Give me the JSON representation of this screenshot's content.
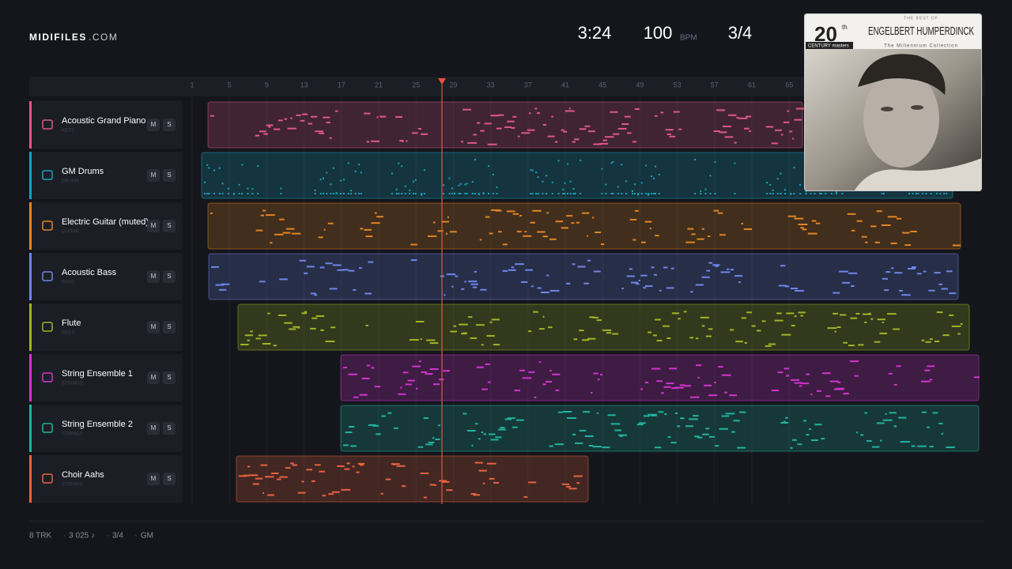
{
  "header": {
    "brand": "MIDIFILES",
    "domain": ".COM",
    "time": "3:24",
    "tempo": "100",
    "tempo_unit": "BPM",
    "meter": "3/4"
  },
  "ruler": [
    1,
    5,
    9,
    13,
    17,
    21,
    25,
    29,
    33,
    37,
    41,
    45,
    49,
    53,
    57,
    61,
    65
  ],
  "tracks": [
    {
      "name": "Acoustic Grand Piano",
      "group": "KEYS",
      "mute": "M",
      "solo": "S",
      "color": "#e0588a"
    },
    {
      "name": "GM Drums",
      "group": "DRUMS",
      "mute": "M",
      "solo": "S",
      "color": "#19a3bd"
    },
    {
      "name": "Electric Guitar (muted)",
      "group": "GUITAR",
      "mute": "M",
      "solo": "S",
      "color": "#e38524"
    },
    {
      "name": "Acoustic Bass",
      "group": "BASS",
      "mute": "M",
      "solo": "S",
      "color": "#6f86e8"
    },
    {
      "name": "Flute",
      "group": "REED",
      "mute": "M",
      "solo": "S",
      "color": "#a3b423"
    },
    {
      "name": "String Ensemble 1",
      "group": "STRINGS",
      "mute": "M",
      "solo": "S",
      "color": "#d533d2"
    },
    {
      "name": "String Ensemble 2",
      "group": "STRINGS",
      "mute": "M",
      "solo": "S",
      "color": "#22b3a1"
    },
    {
      "name": "Choir Aahs",
      "group": "STRINGS",
      "mute": "M",
      "solo": "S",
      "color": "#e8633f"
    }
  ],
  "album": {
    "series_top": "THE BEST OF",
    "artist": "ENGELBERT HUMPERDINCK",
    "badge": "20",
    "badge_sup": "th",
    "badge_sub": "CENTURY masters",
    "collection": "The Millennium Collection"
  },
  "footer": {
    "items": [
      "8 TRK",
      "3 025 ♪",
      "3/4",
      "GM"
    ],
    "separator": "·"
  }
}
